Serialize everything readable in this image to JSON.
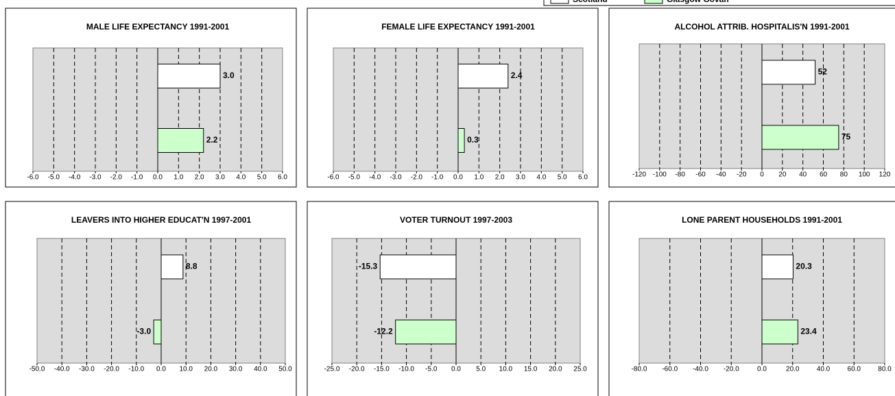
{
  "legend": {
    "series": [
      {
        "name": "Scotland",
        "color": "#ffffff"
      },
      {
        "name": "Glasgow Govan",
        "color": "#ccffcc"
      }
    ]
  },
  "chart_data": [
    {
      "type": "bar",
      "orientation": "horizontal",
      "title": "MALE LIFE EXPECTANCY 1991-2001",
      "values": [
        3.0,
        2.2
      ],
      "value_labels": [
        "3.0",
        "2.2"
      ],
      "xlim": [
        -6,
        6
      ],
      "xticks": [
        {
          "value": -6,
          "label": "-6.0"
        },
        {
          "value": -5,
          "label": "-5.0"
        },
        {
          "value": -4,
          "label": "-4.0"
        },
        {
          "value": -3,
          "label": "-3.0"
        },
        {
          "value": -2,
          "label": "-2.0"
        },
        {
          "value": -1,
          "label": "-1.0"
        },
        {
          "value": 0,
          "label": "0.0"
        },
        {
          "value": 1,
          "label": "1.0"
        },
        {
          "value": 2,
          "label": "2.0"
        },
        {
          "value": 3,
          "label": "3.0"
        },
        {
          "value": 4,
          "label": "4.0"
        },
        {
          "value": 5,
          "label": "5.0"
        },
        {
          "value": 6,
          "label": "6.0"
        }
      ],
      "grid": true
    },
    {
      "type": "bar",
      "orientation": "horizontal",
      "title": "FEMALE LIFE EXPECTANCY 1991-2001",
      "values": [
        2.4,
        0.3
      ],
      "value_labels": [
        "2.4",
        "0.3"
      ],
      "xlim": [
        -6,
        6
      ],
      "xticks": [
        {
          "value": -6,
          "label": "-6.0"
        },
        {
          "value": -5,
          "label": "-5.0"
        },
        {
          "value": -4,
          "label": "-4.0"
        },
        {
          "value": -3,
          "label": "-3.0"
        },
        {
          "value": -2,
          "label": "-2.0"
        },
        {
          "value": -1,
          "label": "-1.0"
        },
        {
          "value": 0,
          "label": "0.0"
        },
        {
          "value": 1,
          "label": "1.0"
        },
        {
          "value": 2,
          "label": "2.0"
        },
        {
          "value": 3,
          "label": "3.0"
        },
        {
          "value": 4,
          "label": "4.0"
        },
        {
          "value": 5,
          "label": "5.0"
        },
        {
          "value": 6,
          "label": "6.0"
        }
      ],
      "grid": true
    },
    {
      "type": "bar",
      "orientation": "horizontal",
      "title": "ALCOHOL ATTRIB.  HOSPITALIS'N 1991-2001",
      "values": [
        52,
        75
      ],
      "value_labels": [
        "52",
        "75"
      ],
      "xlim": [
        -120,
        120
      ],
      "xticks": [
        -120,
        -100,
        -80,
        -60,
        -40,
        -20,
        0,
        20,
        40,
        60,
        80,
        100,
        120
      ],
      "grid": true
    },
    {
      "type": "bar",
      "orientation": "horizontal",
      "title": "LEAVERS INTO HIGHER EDUCAT'N 1997-2001",
      "values": [
        8.8,
        -3.0
      ],
      "value_labels": [
        "8.8",
        "-3.0"
      ],
      "xlim": [
        -50,
        50
      ],
      "xticks": [
        {
          "value": -50,
          "label": "-50.0"
        },
        {
          "value": -40,
          "label": "-40.0"
        },
        {
          "value": -30,
          "label": "-30.0"
        },
        {
          "value": -20,
          "label": "-20.0"
        },
        {
          "value": -10,
          "label": "-10.0"
        },
        {
          "value": 0,
          "label": "0.0"
        },
        {
          "value": 10,
          "label": "10.0"
        },
        {
          "value": 20,
          "label": "20.0"
        },
        {
          "value": 30,
          "label": "30.0"
        },
        {
          "value": 40,
          "label": "40.0"
        },
        {
          "value": 50,
          "label": "50.0"
        }
      ],
      "grid": true
    },
    {
      "type": "bar",
      "orientation": "horizontal",
      "title": "VOTER TURNOUT 1997-2003",
      "values": [
        -15.3,
        -12.2
      ],
      "value_labels": [
        "-15.3",
        "-12.2"
      ],
      "xlim": [
        -25,
        25
      ],
      "xticks": [
        {
          "value": -25,
          "label": "-25.0"
        },
        {
          "value": -20,
          "label": "-20.0"
        },
        {
          "value": -15,
          "label": "-15.0"
        },
        {
          "value": -10,
          "label": "-10.0"
        },
        {
          "value": -5,
          "label": "-5.0"
        },
        {
          "value": 0,
          "label": "0.0"
        },
        {
          "value": 5,
          "label": "5.0"
        },
        {
          "value": 10,
          "label": "10.0"
        },
        {
          "value": 15,
          "label": "15.0"
        },
        {
          "value": 20,
          "label": "20.0"
        },
        {
          "value": 25,
          "label": "25.0"
        }
      ],
      "grid": true
    },
    {
      "type": "bar",
      "orientation": "horizontal",
      "title": "LONE PARENT HOUSEHOLDS 1991-2001",
      "values": [
        20.3,
        23.4
      ],
      "value_labels": [
        "20.3",
        "23.4"
      ],
      "xlim": [
        -80,
        80
      ],
      "xticks": [
        {
          "value": -80,
          "label": "-80.0"
        },
        {
          "value": -60,
          "label": "-60.0"
        },
        {
          "value": -40,
          "label": "-40.0"
        },
        {
          "value": -20,
          "label": "-20.0"
        },
        {
          "value": 0,
          "label": "0.0"
        },
        {
          "value": 20,
          "label": "20.0"
        },
        {
          "value": 40,
          "label": "40.0"
        },
        {
          "value": 60,
          "label": "60.0"
        },
        {
          "value": 80,
          "label": "80.0"
        }
      ],
      "grid": true
    }
  ]
}
